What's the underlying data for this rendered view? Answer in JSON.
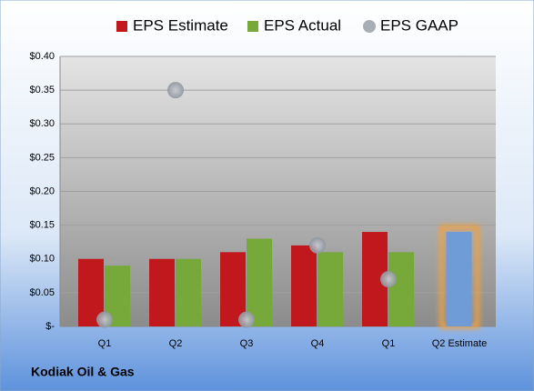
{
  "chart_data": {
    "type": "bar",
    "categories": [
      "Q1",
      "Q2",
      "Q3",
      "Q4",
      "Q1",
      "Q2 Estimate"
    ],
    "series": [
      {
        "name": "EPS Estimate",
        "color": "#c0181c",
        "values": [
          0.1,
          0.1,
          0.11,
          0.12,
          0.14,
          0.14
        ]
      },
      {
        "name": "EPS Actual",
        "color": "#77a83a",
        "values": [
          0.09,
          0.1,
          0.13,
          0.11,
          0.11,
          null
        ]
      },
      {
        "name": "EPS GAAP",
        "color": "#a8aeb6",
        "type": "scatter",
        "values": [
          0.01,
          0.35,
          0.01,
          0.12,
          0.07,
          null
        ]
      }
    ],
    "highlight": {
      "index": 5,
      "color": "#6f9cd6",
      "glow": "#f0a040"
    },
    "ylim": [
      0,
      0.4
    ],
    "yticks": [
      {
        "value": 0,
        "label": "$-"
      },
      {
        "value": 0.05,
        "label": "$0.05"
      },
      {
        "value": 0.1,
        "label": "$0.10"
      },
      {
        "value": 0.15,
        "label": "$0.15"
      },
      {
        "value": 0.2,
        "label": "$0.20"
      },
      {
        "value": 0.25,
        "label": "$0.25"
      },
      {
        "value": 0.3,
        "label": "$0.30"
      },
      {
        "value": 0.35,
        "label": "$0.35"
      },
      {
        "value": 0.4,
        "label": "$0.40"
      }
    ],
    "grid": true,
    "legend": "top",
    "footer": "Kodiak Oil & Gas"
  }
}
